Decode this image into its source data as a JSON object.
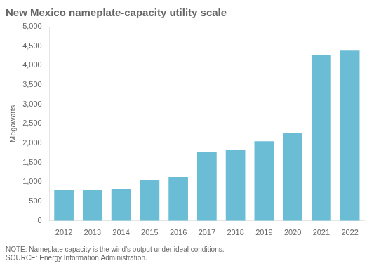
{
  "chart_data": {
    "type": "bar",
    "title": "New Mexico nameplate-capacity utility scale",
    "y_label": "Megawatts",
    "annotations": [
      "NOTE: Nameplate capacity is the wind's output under ideal conditions.",
      "SOURCE: Energy Information Administration."
    ],
    "categories": [
      "2012",
      "2013",
      "2014",
      "2015",
      "2016",
      "2017",
      "2018",
      "2019",
      "2020",
      "2021",
      "2022"
    ],
    "values": [
      790,
      790,
      810,
      1060,
      1120,
      1770,
      1820,
      2050,
      2270,
      4270,
      4400
    ],
    "color": "#6BBDD6",
    "ylim": [
      0,
      5000
    ],
    "yticks": [
      0,
      500,
      {
        "value": 1000,
        "label": "1,000"
      },
      {
        "value": 1500,
        "label": "1,500"
      },
      {
        "value": 2000,
        "label": "2,000"
      },
      {
        "value": 2500,
        "label": "2,500"
      },
      {
        "value": 3000,
        "label": "3,000"
      },
      {
        "value": 3500,
        "label": "3,500"
      },
      {
        "value": 4000,
        "label": "4,000"
      },
      {
        "value": 4500,
        "label": "4,500"
      },
      {
        "value": 5000,
        "label": "5,000"
      }
    ],
    "grid": false
  }
}
